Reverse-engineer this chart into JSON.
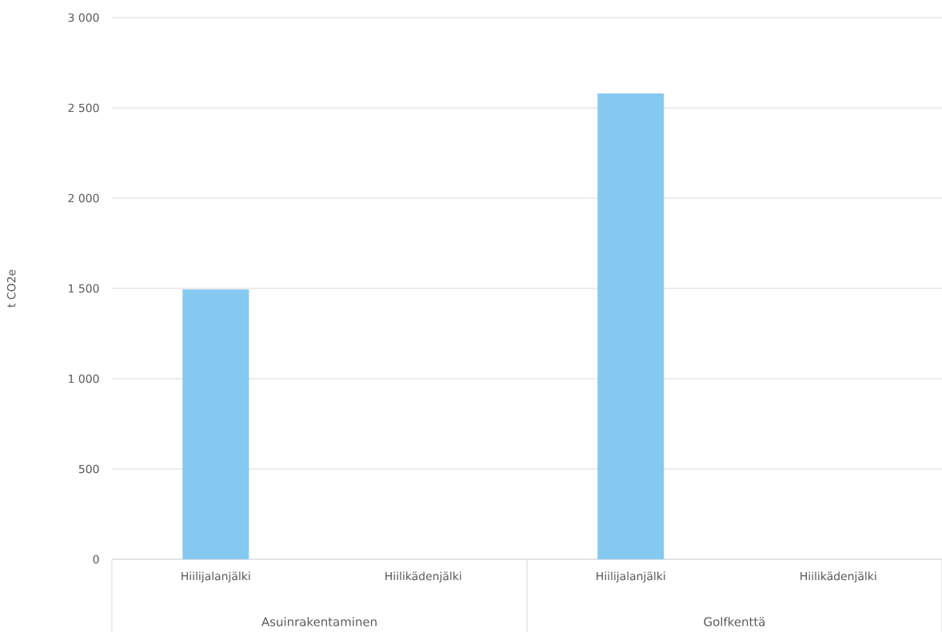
{
  "chart_data": {
    "type": "bar",
    "ylabel": "t CO2e",
    "categories": [
      "Hiilijalanjälki",
      "Hiilikädenjälki",
      "Hiilijalanjälki",
      "Hiilikädenjälki"
    ],
    "values": [
      1495,
      0,
      2580,
      0
    ],
    "color": "#85c8f0",
    "ylim": [
      0,
      3000
    ],
    "yticks": [
      0,
      500,
      {
        "value": 1000,
        "label": "1 000"
      },
      {
        "value": 1500,
        "label": "1 500"
      },
      {
        "value": 2000,
        "label": "2 000"
      },
      {
        "value": 2500,
        "label": "2 500"
      },
      {
        "value": 3000,
        "label": "3 000"
      }
    ],
    "grid": "y",
    "annotations": [
      "Asuinrakentaminen",
      "Golfkenttä"
    ]
  }
}
